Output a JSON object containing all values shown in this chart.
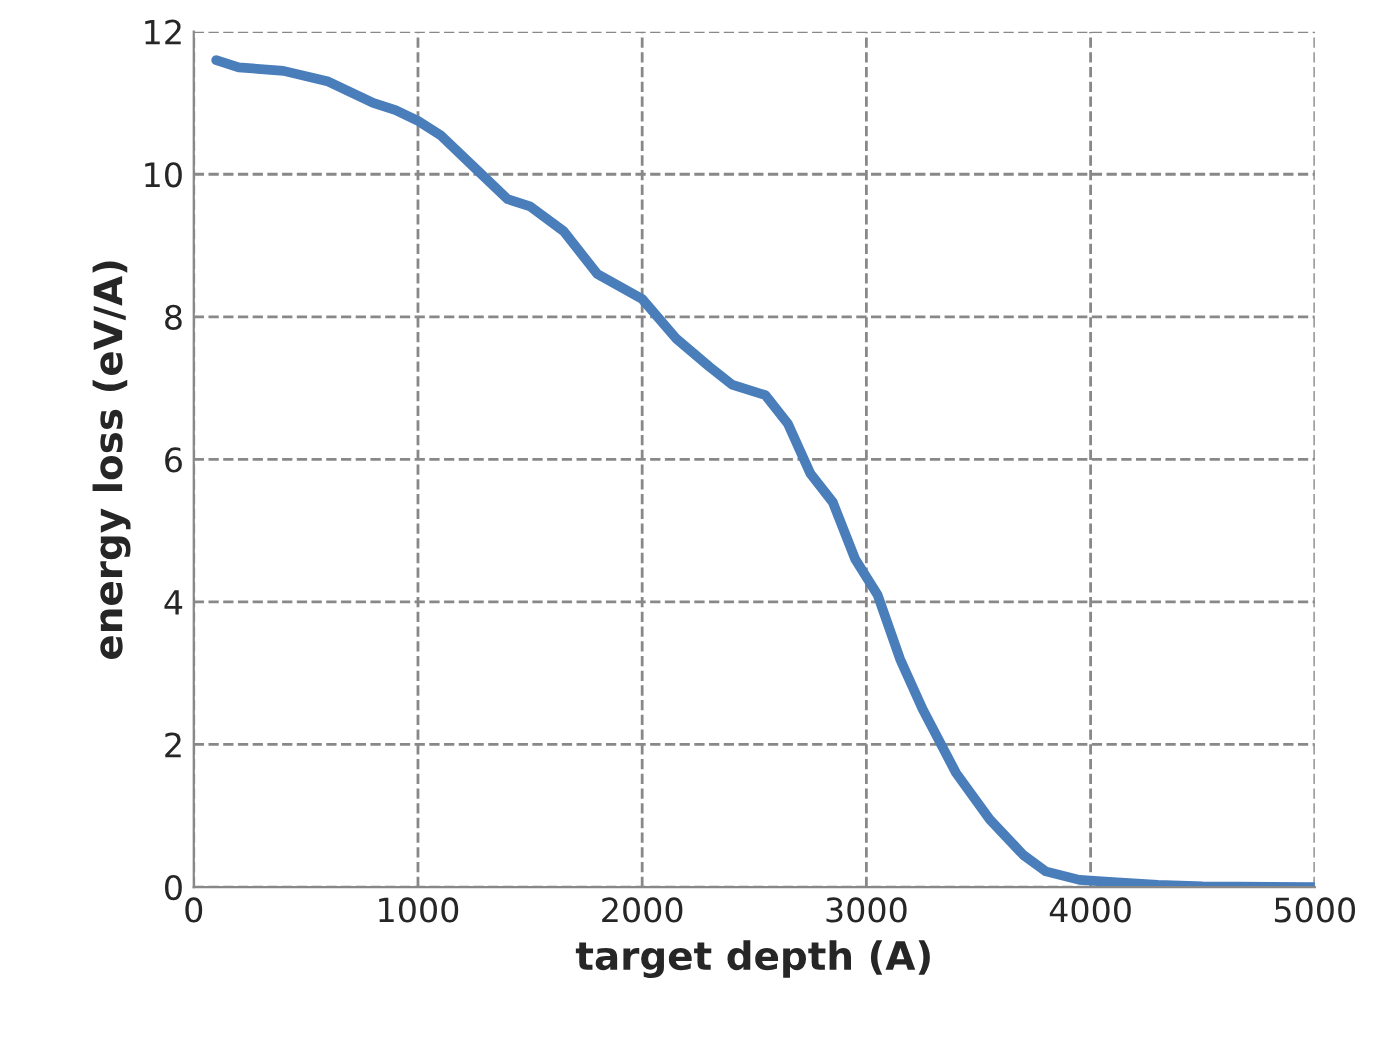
{
  "chart_data": {
    "type": "line",
    "xlabel": "target depth (A)",
    "ylabel": "energy loss (eV/A)",
    "xlim": [
      0,
      5000
    ],
    "xticks": [
      0,
      1000,
      2000,
      3000,
      4000,
      5000
    ],
    "ylim": [
      0,
      12
    ],
    "yticks": [
      0,
      2,
      4,
      6,
      8,
      10,
      12
    ],
    "grid": true,
    "marker": "none",
    "line_style": "solid",
    "series": [
      {
        "color": "#4a7ebb",
        "x": [
          100,
          200,
          400,
          600,
          800,
          900,
          1000,
          1100,
          1250,
          1400,
          1500,
          1650,
          1800,
          2000,
          2150,
          2300,
          2400,
          2550,
          2650,
          2750,
          2850,
          2950,
          3050,
          3150,
          3250,
          3400,
          3550,
          3700,
          3800,
          3950,
          4100,
          4300,
          4500,
          5000
        ],
        "values": [
          11.6,
          11.5,
          11.45,
          11.3,
          11.0,
          10.9,
          10.75,
          10.55,
          10.1,
          9.65,
          9.55,
          9.2,
          8.6,
          8.25,
          7.7,
          7.3,
          7.05,
          6.9,
          6.5,
          5.8,
          5.4,
          4.6,
          4.1,
          3.2,
          2.5,
          1.6,
          0.95,
          0.45,
          0.22,
          0.1,
          0.07,
          0.03,
          0.01,
          0
        ]
      }
    ]
  }
}
